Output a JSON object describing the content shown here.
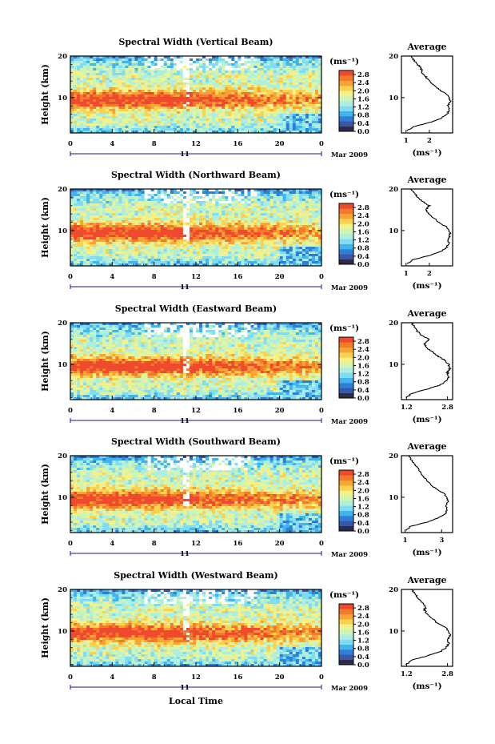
{
  "chart_data": {
    "type": "heatmap",
    "xlabel": "Local Time",
    "date_label": "Mar 2009",
    "day_label": "11",
    "x_ticks": [
      "0",
      "4",
      "8",
      "12",
      "16",
      "20",
      "0"
    ],
    "x_range": [
      0,
      24
    ],
    "y_label": "Height (km)",
    "y_ticks": [
      "20",
      "10"
    ],
    "y_range": [
      1.5,
      20
    ],
    "colorbar": {
      "unit": "(ms⁻¹)",
      "ticks": [
        "2.8",
        "2.4",
        "2.0",
        "1.6",
        "1.2",
        "0.8",
        "0.4",
        "0.0"
      ],
      "range": [
        0,
        3.0
      ],
      "colors": [
        "#2c2c4a",
        "#3b57a8",
        "#2f7fd6",
        "#41b4ee",
        "#7fdcf4",
        "#aeeede",
        "#cff5b4",
        "#f4f08a",
        "#f9d24f",
        "#f7a434",
        "#f37a2a",
        "#ef4a2e"
      ]
    },
    "panels": [
      {
        "title": "Spectral Width (Vertical Beam)",
        "average": {
          "title": "Average",
          "unit": "(ms⁻¹)",
          "x_ticks": [
            "1",
            "2"
          ],
          "x_range": [
            0.8,
            3.0
          ],
          "y_ticks": [
            "20",
            "10"
          ],
          "profile": [
            [
              1.05,
              2
            ],
            [
              1.3,
              3
            ],
            [
              2.0,
              4
            ],
            [
              2.5,
              5
            ],
            [
              2.75,
              6
            ],
            [
              2.85,
              7
            ],
            [
              2.8,
              8
            ],
            [
              2.9,
              9
            ],
            [
              2.85,
              10
            ],
            [
              2.7,
              11
            ],
            [
              2.4,
              12
            ],
            [
              2.2,
              13
            ],
            [
              2.0,
              14
            ],
            [
              1.85,
              15
            ],
            [
              1.7,
              16
            ],
            [
              1.65,
              17
            ],
            [
              1.5,
              18
            ],
            [
              1.35,
              19
            ],
            [
              1.2,
              20
            ]
          ]
        }
      },
      {
        "title": "Spectral Width (Northward Beam)",
        "average": {
          "title": "Average",
          "unit": "(ms⁻¹)",
          "x_ticks": [
            "1",
            "2"
          ],
          "x_range": [
            0.8,
            3.0
          ],
          "y_ticks": [
            "20",
            "10"
          ],
          "profile": [
            [
              1.05,
              2
            ],
            [
              1.3,
              3
            ],
            [
              2.0,
              4
            ],
            [
              2.5,
              5
            ],
            [
              2.75,
              6
            ],
            [
              2.85,
              7
            ],
            [
              2.8,
              8
            ],
            [
              2.9,
              9
            ],
            [
              2.85,
              10
            ],
            [
              2.7,
              11
            ],
            [
              2.4,
              12
            ],
            [
              2.2,
              13
            ],
            [
              2.0,
              14
            ],
            [
              1.85,
              15
            ],
            [
              2.0,
              16
            ],
            [
              1.7,
              17
            ],
            [
              1.5,
              18
            ],
            [
              1.35,
              19
            ],
            [
              1.2,
              20
            ]
          ]
        }
      },
      {
        "title": "Spectral Width (Eastward Beam)",
        "average": {
          "title": "Average",
          "unit": "(ms⁻¹)",
          "x_ticks": [
            "1.2",
            "2.8"
          ],
          "x_range": [
            1.0,
            3.0
          ],
          "y_ticks": [
            "20",
            "10"
          ],
          "profile": [
            [
              1.2,
              2
            ],
            [
              1.4,
              3
            ],
            [
              2.0,
              4
            ],
            [
              2.5,
              5
            ],
            [
              2.75,
              6
            ],
            [
              2.85,
              7
            ],
            [
              2.8,
              8
            ],
            [
              2.9,
              9
            ],
            [
              2.85,
              10
            ],
            [
              2.7,
              11
            ],
            [
              2.4,
              12
            ],
            [
              2.2,
              13
            ],
            [
              2.0,
              14
            ],
            [
              1.9,
              15
            ],
            [
              2.1,
              16
            ],
            [
              1.8,
              17
            ],
            [
              1.6,
              18
            ],
            [
              1.5,
              19
            ],
            [
              1.4,
              20
            ]
          ]
        }
      },
      {
        "title": "Spectral Width (Southward Beam)",
        "average": {
          "title": "Average",
          "unit": "(ms⁻¹)",
          "x_ticks": [
            "1",
            "3"
          ],
          "x_range": [
            0.8,
            3.6
          ],
          "y_ticks": [
            "20",
            "10"
          ],
          "profile": [
            [
              1.05,
              2
            ],
            [
              1.3,
              3
            ],
            [
              2.2,
              4
            ],
            [
              2.8,
              5
            ],
            [
              3.2,
              6
            ],
            [
              3.3,
              7
            ],
            [
              3.25,
              8
            ],
            [
              3.35,
              9
            ],
            [
              3.3,
              10
            ],
            [
              3.1,
              11
            ],
            [
              2.7,
              12
            ],
            [
              2.4,
              13
            ],
            [
              2.2,
              14
            ],
            [
              2.0,
              15
            ],
            [
              1.85,
              16
            ],
            [
              1.7,
              17
            ],
            [
              1.5,
              18
            ],
            [
              1.35,
              19
            ],
            [
              1.2,
              20
            ]
          ]
        }
      },
      {
        "title": "Spectral Width (Westward Beam)",
        "average": {
          "title": "Average",
          "unit": "(ms⁻¹)",
          "x_ticks": [
            "1.2",
            "2.8"
          ],
          "x_range": [
            1.0,
            3.0
          ],
          "y_ticks": [
            "20",
            "10"
          ],
          "profile": [
            [
              1.2,
              2
            ],
            [
              1.4,
              3
            ],
            [
              2.0,
              4
            ],
            [
              2.5,
              5
            ],
            [
              2.75,
              6
            ],
            [
              2.85,
              7
            ],
            [
              2.8,
              8
            ],
            [
              2.9,
              9
            ],
            [
              2.85,
              10
            ],
            [
              2.7,
              11
            ],
            [
              2.4,
              12
            ],
            [
              2.2,
              13
            ],
            [
              2.0,
              14
            ],
            [
              1.9,
              15
            ],
            [
              1.95,
              16
            ],
            [
              1.8,
              17
            ],
            [
              1.65,
              18
            ],
            [
              1.5,
              19
            ],
            [
              1.4,
              20
            ]
          ]
        }
      }
    ]
  }
}
